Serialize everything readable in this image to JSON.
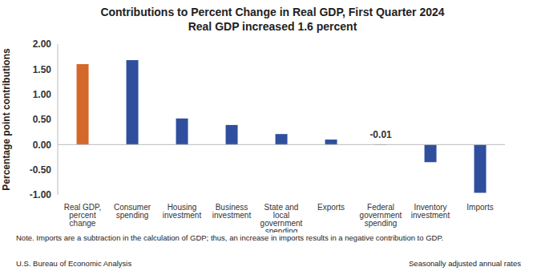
{
  "chart_data": {
    "type": "bar",
    "title": "Contributions to Percent Change in Real GDP, First Quarter 2024",
    "subtitle": "Real GDP increased 1.6 percent",
    "ylabel": "Percentage point contributions",
    "categories": [
      "Real GDP, percent change",
      "Consumer spending",
      "Housing investment",
      "Business investment",
      "State and local government spending",
      "Exports",
      "Federal government spending",
      "Inventory investment",
      "Imports"
    ],
    "values": [
      1.6,
      1.68,
      0.52,
      0.39,
      0.21,
      0.1,
      -0.01,
      -0.35,
      -0.96
    ],
    "colors": [
      "#d4682a",
      "#2f4f9e",
      "#2f4f9e",
      "#2f4f9e",
      "#2f4f9e",
      "#2f4f9e",
      "#2f4f9e",
      "#2f4f9e",
      "#2f4f9e"
    ],
    "ylim": [
      -1,
      2
    ],
    "yticks": [
      {
        "value": -1,
        "label": "-1.00"
      },
      {
        "value": -0.5,
        "label": "-0.50"
      },
      {
        "value": 0,
        "label": "0.00"
      },
      {
        "value": 0.5,
        "label": "0.50"
      },
      {
        "value": 1,
        "label": "1.00"
      },
      {
        "value": 1.5,
        "label": "1.50"
      },
      {
        "value": 2,
        "label": "2.00"
      }
    ],
    "grid": false,
    "annotations": [
      {
        "text": "-0.01",
        "x": "Federal government spending"
      }
    ],
    "note": "Note. Imports are a subtraction in the calculation of GDP; thus, an increase in imports results in a negative contribution to GDP.",
    "source": "U.S. Bureau of Economic Analysis",
    "source_right": "Seasonally adjusted annual rates"
  }
}
